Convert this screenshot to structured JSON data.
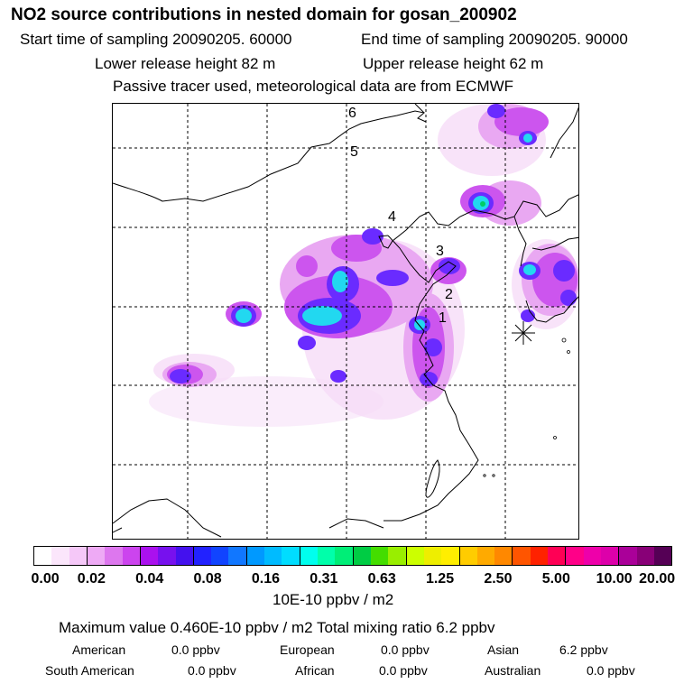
{
  "header": {
    "title": "NO2 source contributions in nested domain for gosan_200902",
    "start_time": "Start time of sampling 20090205. 60000",
    "end_time": "End time of sampling 20090205. 90000",
    "lower_release": "Lower release height   82 m",
    "upper_release": "Upper release height   62 m",
    "tracer_note": "Passive tracer used, meteorological data are from ECMWF"
  },
  "map": {
    "labels": [
      {
        "text": "6",
        "kind": "grid-label"
      },
      {
        "text": "5",
        "kind": "grid-label"
      },
      {
        "text": "4",
        "kind": "grid-label"
      },
      {
        "text": "3",
        "kind": "grid-label"
      },
      {
        "text": "2",
        "kind": "grid-label"
      },
      {
        "text": "1",
        "kind": "grid-label"
      }
    ],
    "receptor_marker": "star-burst"
  },
  "legend": {
    "ticks": [
      "0.00",
      "0.02",
      "0.04",
      "0.08",
      "0.16",
      "0.31",
      "0.63",
      "1.25",
      "2.50",
      "5.00",
      "10.00",
      "20.00"
    ],
    "colors": [
      "#ffffff",
      "#fbe6fb",
      "#f5c8f8",
      "#eeaaf5",
      "#dd77ee",
      "#cc44ee",
      "#aa11ee",
      "#7711ee",
      "#4411ee",
      "#2222ff",
      "#1144ff",
      "#1177ff",
      "#0099ff",
      "#00bbff",
      "#00ddff",
      "#00ffee",
      "#00ffaa",
      "#00ee77",
      "#00cc44",
      "#44dd00",
      "#99ee00",
      "#ccff00",
      "#eeee00",
      "#ffee00",
      "#ffcc00",
      "#ffaa00",
      "#ff8800",
      "#ff5500",
      "#ff2200",
      "#ff0055",
      "#ff0088",
      "#ee00aa",
      "#dd00aa",
      "#aa0099",
      "#880077",
      "#550055"
    ],
    "units": "10E-10 ppbv / m2"
  },
  "summary": {
    "max_line": "Maximum value  0.460E-10 ppbv / m2      Total mixing ratio        6.2 ppbv",
    "rows": [
      {
        "american_label": "American",
        "american_val": "0.0 ppbv",
        "european_label": "European",
        "european_val": "0.0 ppbv",
        "asian_label": "Asian",
        "asian_val": "6.2 ppbv"
      },
      {
        "samerican_label": "South American",
        "samerican_val": "0.0 ppbv",
        "african_label": "African",
        "african_val": "0.0 ppbv",
        "australian_label": "Australian",
        "australian_val": "0.0 ppbv"
      }
    ]
  }
}
